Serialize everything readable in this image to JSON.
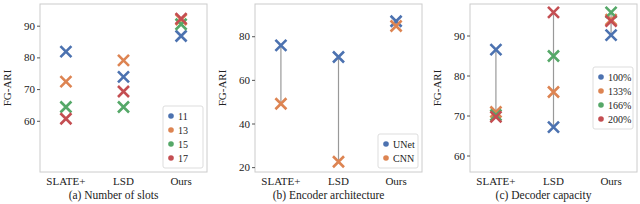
{
  "chart_data": [
    {
      "type": "scatter",
      "title": "(a) Number of slots",
      "y_label": "FG-ARI",
      "categories": [
        "SLATE+",
        "LSD",
        "Ours"
      ],
      "marker": "x",
      "legend": "lower right",
      "ylim": [
        44,
        97
      ],
      "yticks": [
        60,
        70,
        80,
        90
      ],
      "series": [
        {
          "name": "11",
          "color": "#4c72b0",
          "values": [
            82.0,
            74.0,
            86.9
          ]
        },
        {
          "name": "13",
          "color": "#dd8452",
          "values": [
            72.5,
            79.2,
            92.1
          ]
        },
        {
          "name": "15",
          "color": "#55a868",
          "values": [
            64.5,
            64.5,
            90.6
          ]
        },
        {
          "name": "17",
          "color": "#c44e52",
          "values": [
            60.8,
            69.4,
            92.4
          ]
        }
      ]
    },
    {
      "type": "dumbbell",
      "title": "(b) Encoder architecture",
      "y_label": "FG-ARI",
      "categories": [
        "SLATE+",
        "LSD",
        "Ours"
      ],
      "marker": "x",
      "legend": "lower right",
      "ylim": [
        18,
        95
      ],
      "yticks": [
        20,
        40,
        60,
        80
      ],
      "series": [
        {
          "name": "UNet",
          "color": "#4c72b0",
          "values": [
            76.0,
            70.7,
            87.1
          ]
        },
        {
          "name": "CNN",
          "color": "#dd8452",
          "values": [
            49.3,
            22.7,
            84.9
          ]
        }
      ]
    },
    {
      "type": "dumbbell",
      "title": "(c) Decoder capacity",
      "y_label": "FG-ARI",
      "categories": [
        "SLATE+",
        "LSD",
        "Ours"
      ],
      "marker": "x",
      "legend": "right",
      "ylim": [
        56,
        98
      ],
      "yticks": [
        60,
        70,
        80,
        90
      ],
      "series": [
        {
          "name": "100%",
          "color": "#4c72b0",
          "values": [
            86.6,
            67.2,
            90.2
          ]
        },
        {
          "name": "133%",
          "color": "#dd8452",
          "values": [
            71.0,
            76.0,
            94.1
          ]
        },
        {
          "name": "166%",
          "color": "#55a868",
          "values": [
            70.2,
            85.0,
            95.9
          ]
        },
        {
          "name": "200%",
          "color": "#c44e52",
          "values": [
            69.8,
            95.9,
            93.7
          ]
        }
      ]
    }
  ]
}
